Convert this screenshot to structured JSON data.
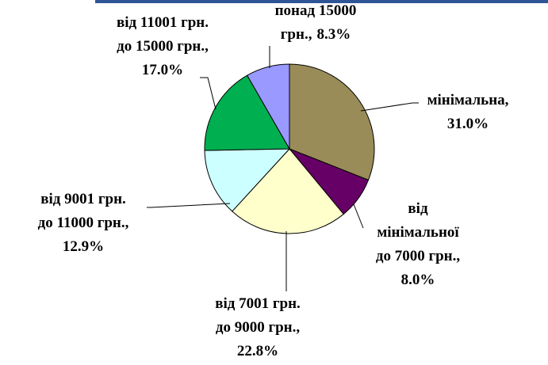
{
  "chart_data": {
    "type": "pie",
    "categories": [
      [
        "мінімальна,"
      ],
      [
        "від",
        "мінімальної",
        "до 7000 грн.,"
      ],
      [
        "від 7001 грн.",
        "до 9000 грн.,"
      ],
      [
        "від 9001 грн.",
        "до 11000 грн.,"
      ],
      [
        "від 11001 грн.",
        "до 15000 грн.,"
      ],
      [
        "понад 15000",
        "грн.,"
      ]
    ],
    "values": [
      31.0,
      8.0,
      22.8,
      12.9,
      17.0,
      8.3
    ],
    "value_labels": [
      "31.0%",
      "8.0%",
      "22.8%",
      "12.9%",
      "17.0%",
      "8.3%"
    ],
    "colors": [
      "#9a8c58",
      "#660066",
      "#ffffcc",
      "#ccffff",
      "#00b050",
      "#9999ff"
    ]
  }
}
